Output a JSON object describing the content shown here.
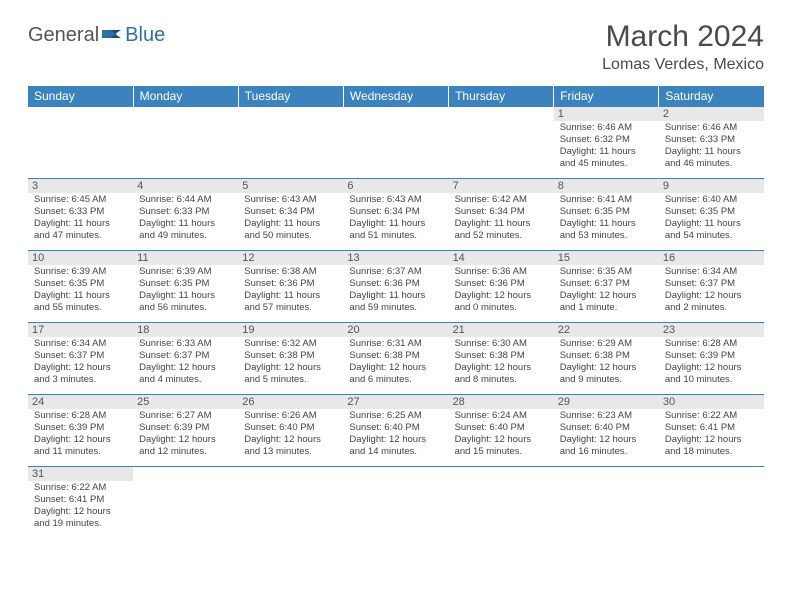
{
  "logo": {
    "part1": "General",
    "part2": "Blue"
  },
  "title": "March 2024",
  "location": "Lomas Verdes, Mexico",
  "colors": {
    "header_bg": "#3a83bf",
    "header_text": "#ffffff",
    "daynum_bg": "#e8e8e8",
    "border": "#3a83bf",
    "logo_blue": "#2f6fa8"
  },
  "weekdays": [
    "Sunday",
    "Monday",
    "Tuesday",
    "Wednesday",
    "Thursday",
    "Friday",
    "Saturday"
  ],
  "weeks": [
    [
      null,
      null,
      null,
      null,
      null,
      {
        "n": "1",
        "sr": "Sunrise: 6:46 AM",
        "ss": "Sunset: 6:32 PM",
        "d1": "Daylight: 11 hours",
        "d2": "and 45 minutes."
      },
      {
        "n": "2",
        "sr": "Sunrise: 6:46 AM",
        "ss": "Sunset: 6:33 PM",
        "d1": "Daylight: 11 hours",
        "d2": "and 46 minutes."
      }
    ],
    [
      {
        "n": "3",
        "sr": "Sunrise: 6:45 AM",
        "ss": "Sunset: 6:33 PM",
        "d1": "Daylight: 11 hours",
        "d2": "and 47 minutes."
      },
      {
        "n": "4",
        "sr": "Sunrise: 6:44 AM",
        "ss": "Sunset: 6:33 PM",
        "d1": "Daylight: 11 hours",
        "d2": "and 49 minutes."
      },
      {
        "n": "5",
        "sr": "Sunrise: 6:43 AM",
        "ss": "Sunset: 6:34 PM",
        "d1": "Daylight: 11 hours",
        "d2": "and 50 minutes."
      },
      {
        "n": "6",
        "sr": "Sunrise: 6:43 AM",
        "ss": "Sunset: 6:34 PM",
        "d1": "Daylight: 11 hours",
        "d2": "and 51 minutes."
      },
      {
        "n": "7",
        "sr": "Sunrise: 6:42 AM",
        "ss": "Sunset: 6:34 PM",
        "d1": "Daylight: 11 hours",
        "d2": "and 52 minutes."
      },
      {
        "n": "8",
        "sr": "Sunrise: 6:41 AM",
        "ss": "Sunset: 6:35 PM",
        "d1": "Daylight: 11 hours",
        "d2": "and 53 minutes."
      },
      {
        "n": "9",
        "sr": "Sunrise: 6:40 AM",
        "ss": "Sunset: 6:35 PM",
        "d1": "Daylight: 11 hours",
        "d2": "and 54 minutes."
      }
    ],
    [
      {
        "n": "10",
        "sr": "Sunrise: 6:39 AM",
        "ss": "Sunset: 6:35 PM",
        "d1": "Daylight: 11 hours",
        "d2": "and 55 minutes."
      },
      {
        "n": "11",
        "sr": "Sunrise: 6:39 AM",
        "ss": "Sunset: 6:35 PM",
        "d1": "Daylight: 11 hours",
        "d2": "and 56 minutes."
      },
      {
        "n": "12",
        "sr": "Sunrise: 6:38 AM",
        "ss": "Sunset: 6:36 PM",
        "d1": "Daylight: 11 hours",
        "d2": "and 57 minutes."
      },
      {
        "n": "13",
        "sr": "Sunrise: 6:37 AM",
        "ss": "Sunset: 6:36 PM",
        "d1": "Daylight: 11 hours",
        "d2": "and 59 minutes."
      },
      {
        "n": "14",
        "sr": "Sunrise: 6:36 AM",
        "ss": "Sunset: 6:36 PM",
        "d1": "Daylight: 12 hours",
        "d2": "and 0 minutes."
      },
      {
        "n": "15",
        "sr": "Sunrise: 6:35 AM",
        "ss": "Sunset: 6:37 PM",
        "d1": "Daylight: 12 hours",
        "d2": "and 1 minute."
      },
      {
        "n": "16",
        "sr": "Sunrise: 6:34 AM",
        "ss": "Sunset: 6:37 PM",
        "d1": "Daylight: 12 hours",
        "d2": "and 2 minutes."
      }
    ],
    [
      {
        "n": "17",
        "sr": "Sunrise: 6:34 AM",
        "ss": "Sunset: 6:37 PM",
        "d1": "Daylight: 12 hours",
        "d2": "and 3 minutes."
      },
      {
        "n": "18",
        "sr": "Sunrise: 6:33 AM",
        "ss": "Sunset: 6:37 PM",
        "d1": "Daylight: 12 hours",
        "d2": "and 4 minutes."
      },
      {
        "n": "19",
        "sr": "Sunrise: 6:32 AM",
        "ss": "Sunset: 6:38 PM",
        "d1": "Daylight: 12 hours",
        "d2": "and 5 minutes."
      },
      {
        "n": "20",
        "sr": "Sunrise: 6:31 AM",
        "ss": "Sunset: 6:38 PM",
        "d1": "Daylight: 12 hours",
        "d2": "and 6 minutes."
      },
      {
        "n": "21",
        "sr": "Sunrise: 6:30 AM",
        "ss": "Sunset: 6:38 PM",
        "d1": "Daylight: 12 hours",
        "d2": "and 8 minutes."
      },
      {
        "n": "22",
        "sr": "Sunrise: 6:29 AM",
        "ss": "Sunset: 6:38 PM",
        "d1": "Daylight: 12 hours",
        "d2": "and 9 minutes."
      },
      {
        "n": "23",
        "sr": "Sunrise: 6:28 AM",
        "ss": "Sunset: 6:39 PM",
        "d1": "Daylight: 12 hours",
        "d2": "and 10 minutes."
      }
    ],
    [
      {
        "n": "24",
        "sr": "Sunrise: 6:28 AM",
        "ss": "Sunset: 6:39 PM",
        "d1": "Daylight: 12 hours",
        "d2": "and 11 minutes."
      },
      {
        "n": "25",
        "sr": "Sunrise: 6:27 AM",
        "ss": "Sunset: 6:39 PM",
        "d1": "Daylight: 12 hours",
        "d2": "and 12 minutes."
      },
      {
        "n": "26",
        "sr": "Sunrise: 6:26 AM",
        "ss": "Sunset: 6:40 PM",
        "d1": "Daylight: 12 hours",
        "d2": "and 13 minutes."
      },
      {
        "n": "27",
        "sr": "Sunrise: 6:25 AM",
        "ss": "Sunset: 6:40 PM",
        "d1": "Daylight: 12 hours",
        "d2": "and 14 minutes."
      },
      {
        "n": "28",
        "sr": "Sunrise: 6:24 AM",
        "ss": "Sunset: 6:40 PM",
        "d1": "Daylight: 12 hours",
        "d2": "and 15 minutes."
      },
      {
        "n": "29",
        "sr": "Sunrise: 6:23 AM",
        "ss": "Sunset: 6:40 PM",
        "d1": "Daylight: 12 hours",
        "d2": "and 16 minutes."
      },
      {
        "n": "30",
        "sr": "Sunrise: 6:22 AM",
        "ss": "Sunset: 6:41 PM",
        "d1": "Daylight: 12 hours",
        "d2": "and 18 minutes."
      }
    ],
    [
      {
        "n": "31",
        "sr": "Sunrise: 6:22 AM",
        "ss": "Sunset: 6:41 PM",
        "d1": "Daylight: 12 hours",
        "d2": "and 19 minutes."
      },
      null,
      null,
      null,
      null,
      null,
      null
    ]
  ]
}
